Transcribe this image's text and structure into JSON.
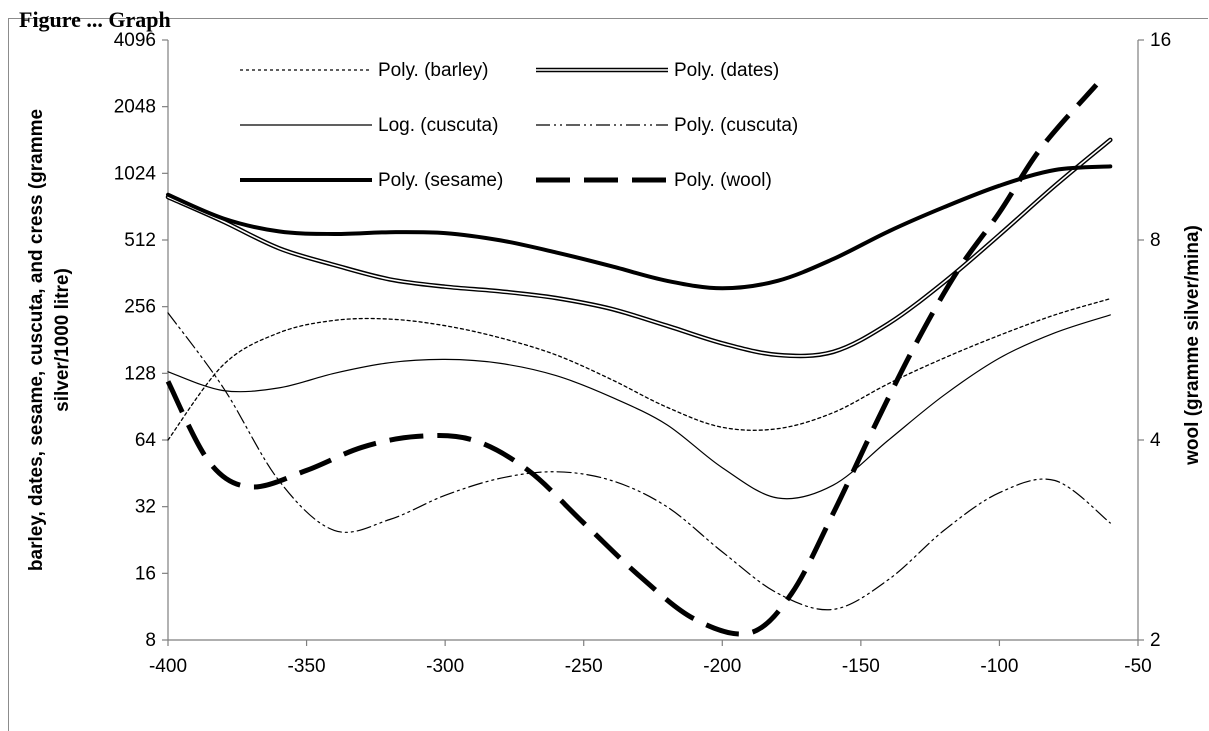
{
  "heading": "Figure ... Graph",
  "chart_data": {
    "type": "line",
    "x_axis": {
      "ticks": [
        -400,
        -350,
        -300,
        -250,
        -200,
        -150,
        -100,
        -50
      ],
      "range": [
        -400,
        -50
      ]
    },
    "y_left": {
      "label_line1": "barley, dates, sesame, cuscuta, and cress (gramme",
      "label_line2": "silver/1000 litre)",
      "scale": "log2",
      "range": [
        8,
        4096
      ],
      "ticks": [
        8,
        16,
        32,
        64,
        128,
        256,
        512,
        1024,
        2048,
        4096
      ]
    },
    "y_right": {
      "label": "wool (gramme silver/mina)",
      "scale": "log2",
      "range": [
        2,
        16
      ],
      "ticks": [
        2,
        4,
        8,
        16
      ]
    },
    "grid": false,
    "legend_placement": "top-left inside plot",
    "series": [
      {
        "name": "Poly. (barley)",
        "axis": "left",
        "style": "dotted",
        "x": [
          -400,
          -380,
          -360,
          -340,
          -320,
          -300,
          -280,
          -260,
          -240,
          -220,
          -200,
          -180,
          -160,
          -140,
          -120,
          -100,
          -80,
          -60
        ],
        "y": [
          64,
          140,
          195,
          222,
          225,
          210,
          185,
          155,
          120,
          90,
          73,
          72,
          85,
          115,
          150,
          190,
          235,
          278
        ]
      },
      {
        "name": "Poly. (dates)",
        "axis": "left",
        "style": "double",
        "x": [
          -400,
          -380,
          -360,
          -340,
          -320,
          -300,
          -280,
          -260,
          -240,
          -220,
          -200,
          -180,
          -160,
          -140,
          -120,
          -100,
          -80,
          -60
        ],
        "y": [
          800,
          620,
          470,
          395,
          340,
          315,
          300,
          280,
          250,
          210,
          175,
          155,
          160,
          215,
          330,
          540,
          900,
          1450
        ]
      },
      {
        "name": "Log. (cuscuta)",
        "axis": "left",
        "style": "thin",
        "x": [
          -400,
          -380,
          -360,
          -340,
          -320,
          -300,
          -280,
          -260,
          -240,
          -220,
          -200,
          -180,
          -160,
          -140,
          -120,
          -100,
          -80,
          -60
        ],
        "y": [
          130,
          107,
          110,
          128,
          143,
          148,
          142,
          125,
          100,
          75,
          48,
          35,
          40,
          64,
          102,
          150,
          195,
          235
        ]
      },
      {
        "name": "Poly. (cuscuta)",
        "axis": "left",
        "style": "dash-dot-dot",
        "x": [
          -400,
          -380,
          -360,
          -340,
          -320,
          -300,
          -280,
          -260,
          -240,
          -220,
          -200,
          -180,
          -160,
          -140,
          -120,
          -100,
          -80,
          -60
        ],
        "y": [
          240,
          110,
          42,
          25,
          28,
          36,
          43,
          46,
          42,
          32,
          20,
          13,
          11,
          15,
          25,
          37,
          42,
          27
        ]
      },
      {
        "name": "Poly. (sesame)",
        "axis": "left",
        "style": "thick",
        "x": [
          -400,
          -380,
          -360,
          -340,
          -320,
          -300,
          -280,
          -260,
          -240,
          -220,
          -200,
          -180,
          -160,
          -140,
          -120,
          -100,
          -80,
          -60
        ],
        "y": [
          820,
          640,
          560,
          545,
          555,
          550,
          510,
          450,
          390,
          335,
          310,
          335,
          420,
          560,
          720,
          900,
          1060,
          1100
        ]
      },
      {
        "name": "Poly. (wool)",
        "axis": "right",
        "style": "thick-dashed",
        "x": [
          -400,
          -385,
          -370,
          -350,
          -330,
          -310,
          -290,
          -270,
          -250,
          -230,
          -210,
          -190,
          -175,
          -160,
          -145,
          -130,
          -115,
          -100,
          -85,
          -65
        ],
        "y": [
          4.9,
          3.7,
          3.4,
          3.6,
          3.9,
          4.05,
          4.0,
          3.6,
          3.0,
          2.5,
          2.15,
          2.05,
          2.35,
          3.1,
          4.2,
          5.6,
          7.2,
          8.8,
          11.0,
          13.7
        ]
      }
    ]
  }
}
